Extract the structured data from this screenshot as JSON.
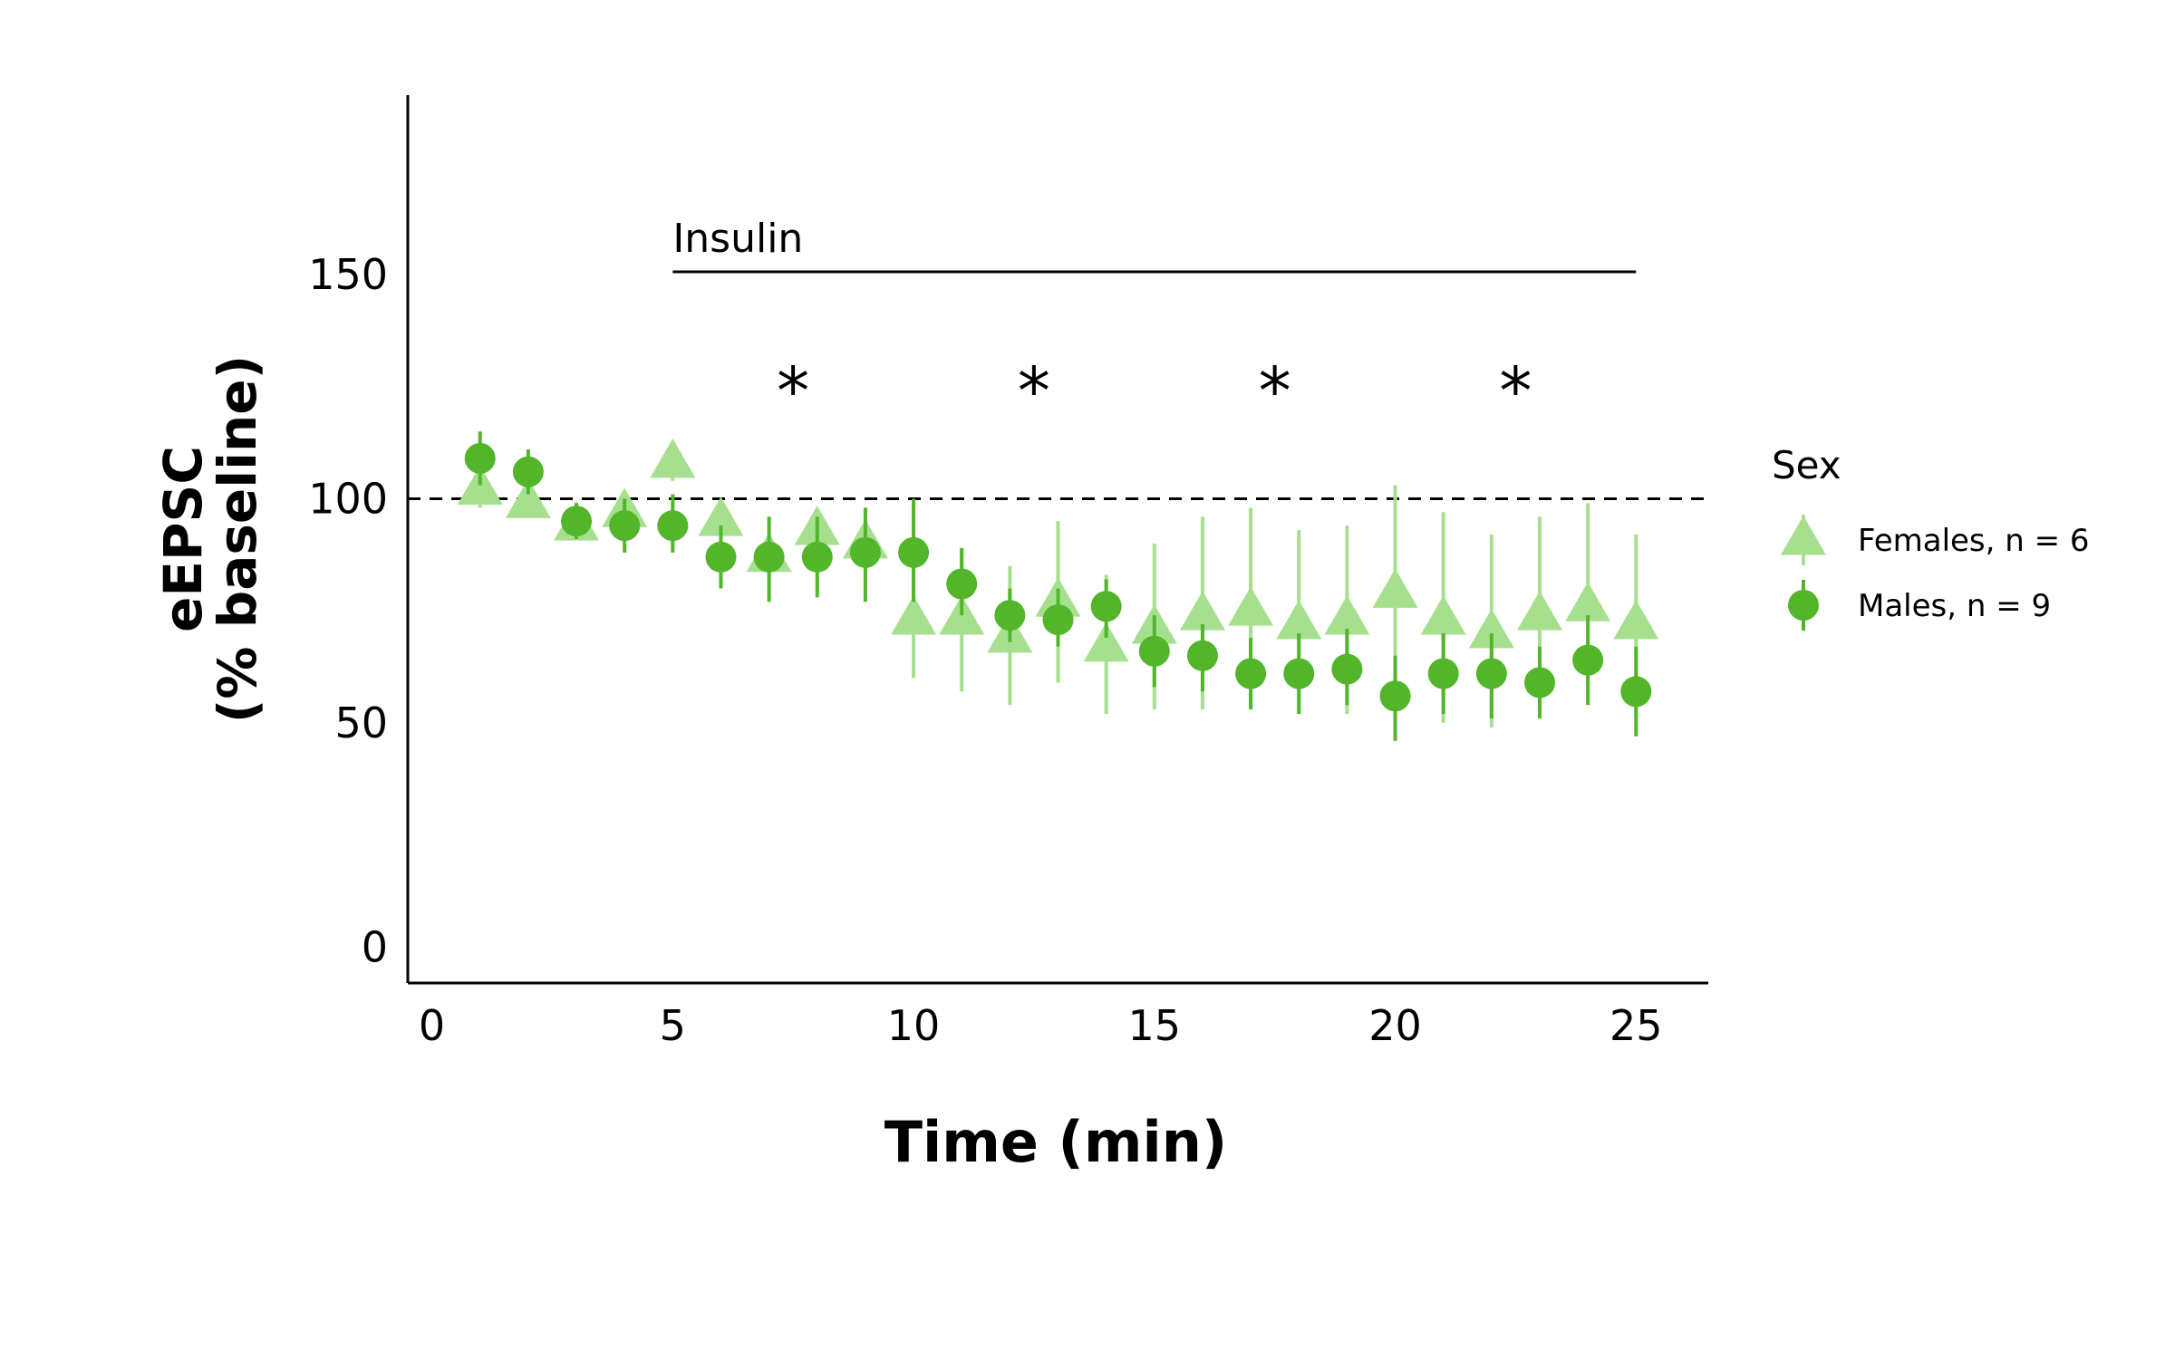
{
  "chart_data": {
    "type": "scatter",
    "title": "",
    "xlabel": "Time (min)",
    "ylabel_line1": "eEPSC",
    "ylabel_line2": "(% baseline)",
    "xlim": [
      -0.5,
      26.5
    ],
    "ylim": [
      -8,
      190
    ],
    "xticks": [
      0,
      5,
      10,
      15,
      20,
      25
    ],
    "yticks": [
      0,
      50,
      100,
      150
    ],
    "baseline": 100,
    "grid": false,
    "legend": {
      "title": "Sex",
      "placement": "right"
    },
    "annotation": {
      "text": "Insulin",
      "x_start": 5,
      "x_end": 25,
      "y": 150
    },
    "significance": [
      {
        "label": "*",
        "x": 7.5,
        "y": 125
      },
      {
        "label": "*",
        "x": 12.5,
        "y": 125
      },
      {
        "label": "*",
        "x": 17.5,
        "y": 125
      },
      {
        "label": "*",
        "x": 22.5,
        "y": 125
      }
    ],
    "series": [
      {
        "name": "Females, n = 6",
        "marker": "triangle",
        "color": "#a6e08f",
        "points": [
          {
            "x": 1,
            "y": 102,
            "lo": 98,
            "hi": 107
          },
          {
            "x": 2,
            "y": 99,
            "lo": 97,
            "hi": 103
          },
          {
            "x": 3,
            "y": 94,
            "lo": 91,
            "hi": 97
          },
          {
            "x": 4,
            "y": 97,
            "lo": 93,
            "hi": 101
          },
          {
            "x": 5,
            "y": 108,
            "lo": 104,
            "hi": 112
          },
          {
            "x": 6,
            "y": 95,
            "lo": 93,
            "hi": 97
          },
          {
            "x": 7,
            "y": 87,
            "lo": 84,
            "hi": 89
          },
          {
            "x": 8,
            "y": 93,
            "lo": 91,
            "hi": 95
          },
          {
            "x": 9,
            "y": 90,
            "lo": 82,
            "hi": 97
          },
          {
            "x": 10,
            "y": 73,
            "lo": 60,
            "hi": 86
          },
          {
            "x": 11,
            "y": 73,
            "lo": 57,
            "hi": 89
          },
          {
            "x": 12,
            "y": 69,
            "lo": 54,
            "hi": 85
          },
          {
            "x": 13,
            "y": 77,
            "lo": 59,
            "hi": 95
          },
          {
            "x": 14,
            "y": 67,
            "lo": 52,
            "hi": 83
          },
          {
            "x": 15,
            "y": 71,
            "lo": 53,
            "hi": 90
          },
          {
            "x": 16,
            "y": 74,
            "lo": 53,
            "hi": 96
          },
          {
            "x": 17,
            "y": 75,
            "lo": 53,
            "hi": 98
          },
          {
            "x": 18,
            "y": 72,
            "lo": 52,
            "hi": 93
          },
          {
            "x": 19,
            "y": 73,
            "lo": 52,
            "hi": 94
          },
          {
            "x": 20,
            "y": 79,
            "lo": 55,
            "hi": 103
          },
          {
            "x": 21,
            "y": 73,
            "lo": 50,
            "hi": 97
          },
          {
            "x": 22,
            "y": 70,
            "lo": 49,
            "hi": 92
          },
          {
            "x": 23,
            "y": 74,
            "lo": 53,
            "hi": 96
          },
          {
            "x": 24,
            "y": 76,
            "lo": 54,
            "hi": 99
          },
          {
            "x": 25,
            "y": 72,
            "lo": 52,
            "hi": 92
          }
        ]
      },
      {
        "name": "Males, n = 9",
        "marker": "circle",
        "color": "#52b52a",
        "points": [
          {
            "x": 1,
            "y": 109,
            "lo": 103,
            "hi": 115
          },
          {
            "x": 2,
            "y": 106,
            "lo": 101,
            "hi": 111
          },
          {
            "x": 3,
            "y": 95,
            "lo": 91,
            "hi": 99
          },
          {
            "x": 4,
            "y": 94,
            "lo": 88,
            "hi": 100
          },
          {
            "x": 5,
            "y": 94,
            "lo": 88,
            "hi": 101
          },
          {
            "x": 6,
            "y": 87,
            "lo": 80,
            "hi": 94
          },
          {
            "x": 7,
            "y": 87,
            "lo": 77,
            "hi": 96
          },
          {
            "x": 8,
            "y": 87,
            "lo": 78,
            "hi": 96
          },
          {
            "x": 9,
            "y": 88,
            "lo": 77,
            "hi": 98
          },
          {
            "x": 10,
            "y": 88,
            "lo": 77,
            "hi": 100
          },
          {
            "x": 11,
            "y": 81,
            "lo": 74,
            "hi": 89
          },
          {
            "x": 12,
            "y": 74,
            "lo": 68,
            "hi": 80
          },
          {
            "x": 13,
            "y": 73,
            "lo": 67,
            "hi": 80
          },
          {
            "x": 14,
            "y": 76,
            "lo": 69,
            "hi": 82
          },
          {
            "x": 15,
            "y": 66,
            "lo": 58,
            "hi": 74
          },
          {
            "x": 16,
            "y": 65,
            "lo": 57,
            "hi": 72
          },
          {
            "x": 17,
            "y": 61,
            "lo": 53,
            "hi": 69
          },
          {
            "x": 18,
            "y": 61,
            "lo": 52,
            "hi": 70
          },
          {
            "x": 19,
            "y": 62,
            "lo": 54,
            "hi": 71
          },
          {
            "x": 20,
            "y": 56,
            "lo": 46,
            "hi": 65
          },
          {
            "x": 21,
            "y": 61,
            "lo": 52,
            "hi": 70
          },
          {
            "x": 22,
            "y": 61,
            "lo": 51,
            "hi": 70
          },
          {
            "x": 23,
            "y": 59,
            "lo": 51,
            "hi": 67
          },
          {
            "x": 24,
            "y": 64,
            "lo": 54,
            "hi": 74
          },
          {
            "x": 25,
            "y": 57,
            "lo": 47,
            "hi": 67
          }
        ]
      }
    ]
  }
}
